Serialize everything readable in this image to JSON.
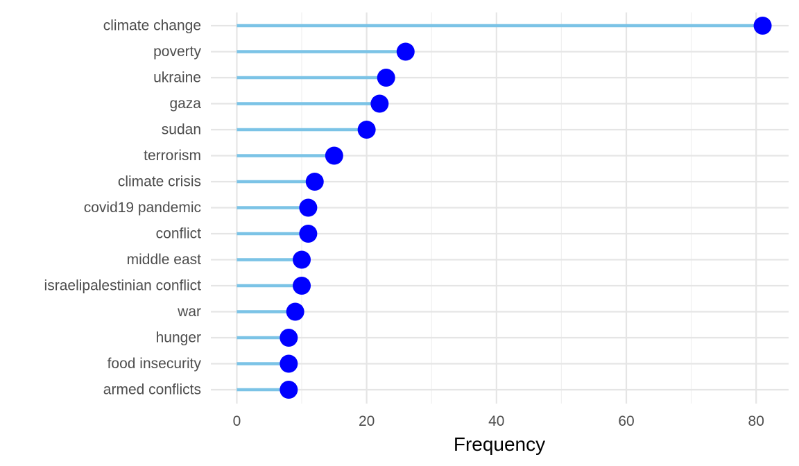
{
  "chart_data": {
    "type": "lollipop",
    "title": "",
    "xlabel": "Frequency",
    "ylabel": "",
    "xlim": [
      -4,
      85
    ],
    "x_ticks": [
      0,
      20,
      40,
      60,
      80
    ],
    "grid": true,
    "categories": [
      "climate change",
      "poverty",
      "ukraine",
      "gaza",
      "sudan",
      "terrorism",
      "climate crisis",
      "covid19 pandemic",
      "conflict",
      "middle east",
      "israelipalestinian conflict",
      "war",
      "hunger",
      "food insecurity",
      "armed conflicts"
    ],
    "values": [
      81,
      26,
      23,
      22,
      20,
      15,
      12,
      11,
      11,
      10,
      10,
      9,
      8,
      8,
      8
    ],
    "colors": {
      "stem": "#7bc3e6",
      "point": "#0000ff",
      "grid_major": "#e5e5e5",
      "grid_minor": "#f0f0f0"
    }
  }
}
